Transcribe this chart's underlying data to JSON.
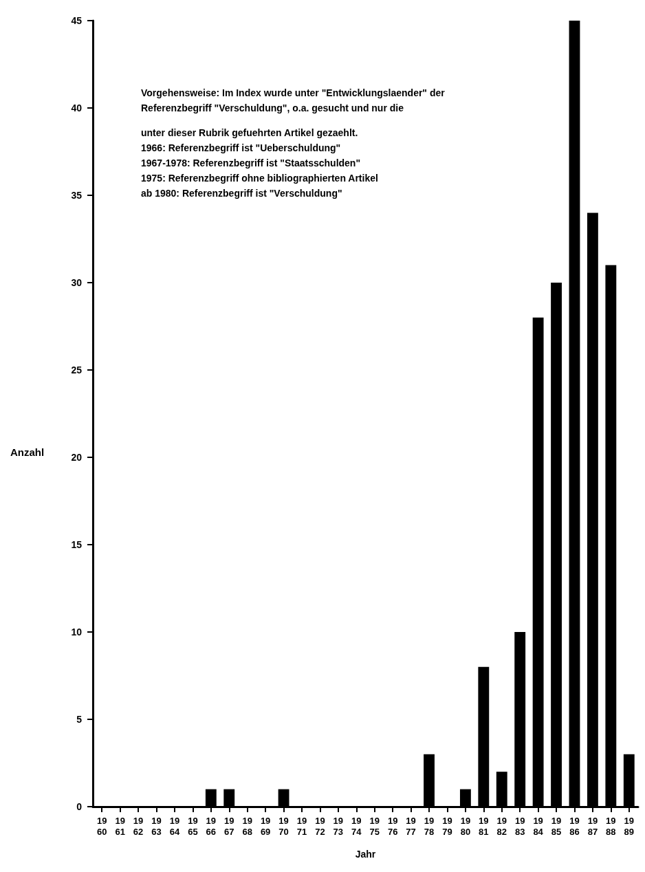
{
  "chart_data": {
    "type": "bar",
    "xlabel": "Jahr",
    "ylabel": "Anzahl",
    "categories": [
      "19\n60",
      "19\n61",
      "19\n62",
      "19\n63",
      "19\n64",
      "19\n65",
      "19\n66",
      "19\n67",
      "19\n68",
      "19\n69",
      "19\n70",
      "19\n71",
      "19\n72",
      "19\n73",
      "19\n74",
      "19\n75",
      "19\n76",
      "19\n77",
      "19\n78",
      "19\n79",
      "19\n80",
      "19\n81",
      "19\n82",
      "19\n83",
      "19\n84",
      "19\n85",
      "19\n86",
      "19\n87",
      "19\n88",
      "19\n89"
    ],
    "values": [
      0,
      0,
      0,
      0,
      0,
      0,
      1,
      1,
      0,
      0,
      1,
      0,
      0,
      0,
      0,
      0,
      0,
      0,
      3,
      0,
      1,
      8,
      2,
      10,
      28,
      30,
      45,
      34,
      31,
      3
    ],
    "color": "#000000",
    "ylim": [
      0,
      45
    ],
    "yticks": [
      0,
      5,
      10,
      15,
      20,
      25,
      30,
      35,
      40,
      45
    ],
    "grid": false,
    "annotations": [
      "Vorgehensweise: Im Index wurde unter \"Entwicklungslaender\" der",
      "Referenzbegriff \"Verschuldung\", o.a. gesucht und nur die",
      "unter dieser Rubrik gefuehrten Artikel gezaehlt.",
      "1966: Referenzbegriff ist \"Ueberschuldung\"",
      "1967-1978: Referenzbegriff ist \"Staatsschulden\"",
      "1975: Referenzbegriff ohne bibliographierten Artikel",
      "ab 1980: Referenzbegriff ist \"Verschuldung\""
    ]
  }
}
